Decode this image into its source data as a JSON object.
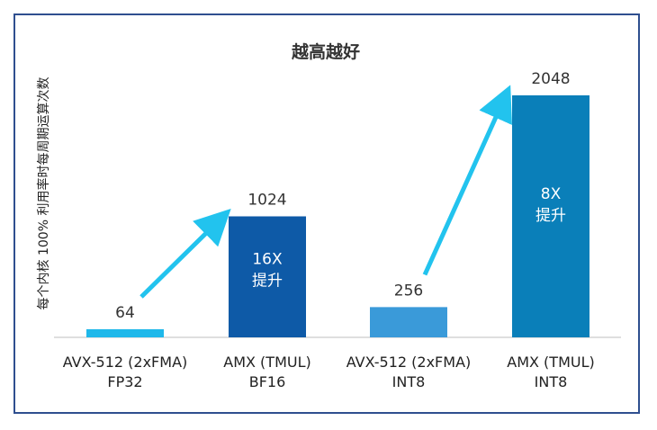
{
  "chart_data": {
    "type": "bar",
    "title": "越高越好",
    "ylabel": "每个内核 100% 利用率时每周期运算次数",
    "xlabel": "",
    "ylim": [
      0,
      2048
    ],
    "categories": [
      [
        "AVX-512 (2xFMA)",
        "FP32"
      ],
      [
        "AMX (TMUL)",
        "BF16"
      ],
      [
        "AVX-512 (2xFMA)",
        "INT8"
      ],
      [
        "AMX (TMUL)",
        "INT8"
      ]
    ],
    "values": [
      64,
      1024,
      256,
      2048
    ],
    "value_labels": [
      "64",
      "1024",
      "256",
      "2048"
    ],
    "bar_colors": [
      "#1fb8ea",
      "#0e5aa7",
      "#3a9ad9",
      "#0a7fb9"
    ],
    "annotations": [
      {
        "bar": 1,
        "lines": [
          "16X",
          "提升"
        ]
      },
      {
        "bar": 3,
        "lines": [
          "8X",
          "提升"
        ]
      }
    ],
    "arrows": [
      {
        "from_bar": 0,
        "to_bar": 1
      },
      {
        "from_bar": 2,
        "to_bar": 3
      }
    ],
    "arrow_color": "#22c3ee",
    "grid": false
  }
}
